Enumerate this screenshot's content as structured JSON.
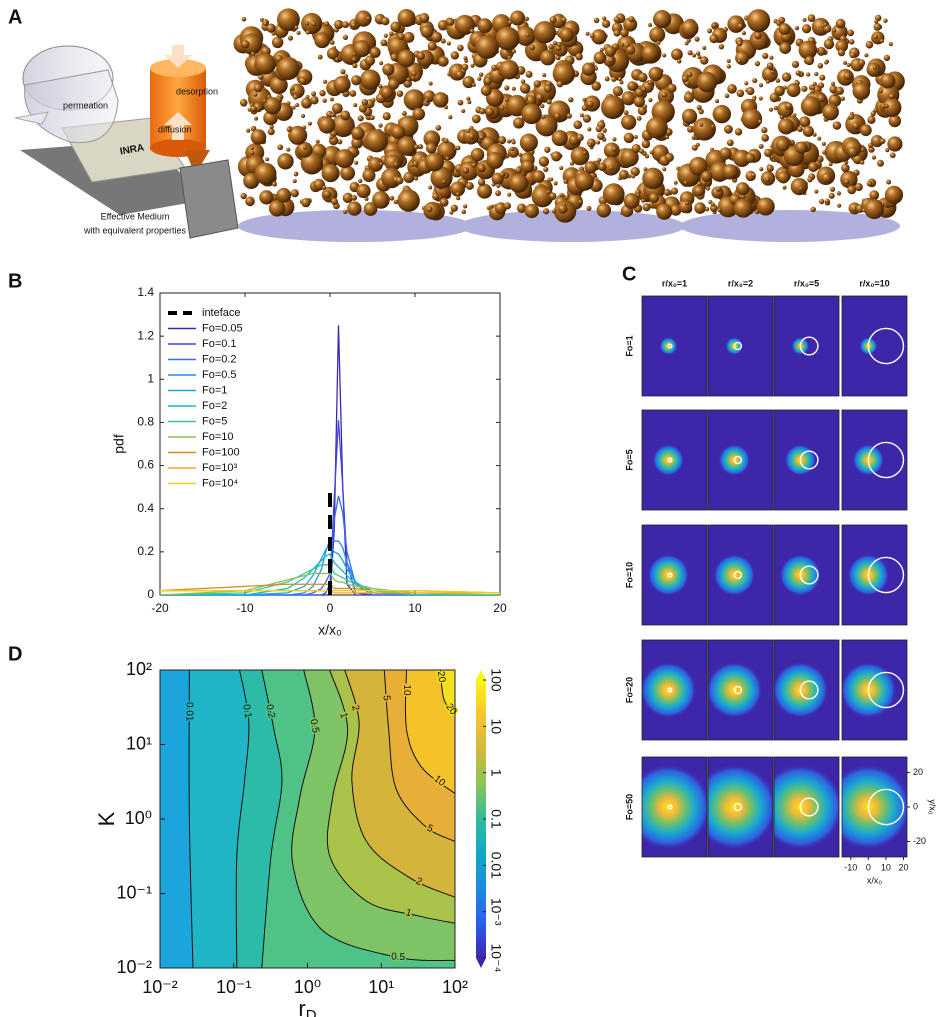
{
  "panel_labels": [
    "A",
    "B",
    "C",
    "D"
  ],
  "schematic": {
    "permeation": "permeation",
    "desorption": "desorption",
    "diffusion": "diffusion",
    "card_text": "INRA",
    "caption_1": "Effective Medium",
    "caption_2": "with equivalent properties"
  },
  "chart_data": [
    {
      "type": "line",
      "xlabel": "x/x₀",
      "ylabel": "pdf",
      "xlim": [
        -20,
        20
      ],
      "ylim": [
        0,
        1.4
      ],
      "xticks": [
        -20,
        -10,
        0,
        10,
        20
      ],
      "yticks": [
        0,
        0.2,
        0.4,
        0.6,
        0.8,
        1,
        1.2,
        1.4
      ],
      "legend": "upper left",
      "interface": {
        "name": "inteface",
        "color": "#000000",
        "x": [
          0,
          0
        ],
        "values": [
          0,
          0.5
        ]
      },
      "x": [
        -20,
        -10,
        -5,
        -3,
        -2,
        -1,
        -0.5,
        0,
        0.5,
        1,
        1.5,
        2,
        3,
        5,
        10,
        20
      ],
      "series": [
        {
          "name": "Fo=0.05",
          "color": "#3b28b0",
          "values": [
            0,
            0,
            0,
            0,
            0,
            0,
            0,
            0,
            0.3,
            1.25,
            0.5,
            0.05,
            0,
            0,
            0,
            0
          ]
        },
        {
          "name": "Fo=0.1",
          "color": "#4347d6",
          "values": [
            0,
            0,
            0,
            0,
            0,
            0,
            0.01,
            0.05,
            0.45,
            0.81,
            0.5,
            0.15,
            0.01,
            0,
            0,
            0
          ]
        },
        {
          "name": "Fo=0.2",
          "color": "#3a68ef",
          "values": [
            0,
            0,
            0,
            0,
            0.01,
            0.03,
            0.06,
            0.1,
            0.35,
            0.46,
            0.38,
            0.2,
            0.05,
            0,
            0,
            0
          ]
        },
        {
          "name": "Fo=0.5",
          "color": "#2b8aec",
          "values": [
            0,
            0,
            0,
            0.01,
            0.04,
            0.12,
            0.2,
            0.26,
            0.25,
            0.25,
            0.22,
            0.15,
            0.06,
            0.01,
            0,
            0
          ]
        },
        {
          "name": "Fo=1",
          "color": "#18a6dd",
          "values": [
            0,
            0,
            0.01,
            0.04,
            0.09,
            0.17,
            0.21,
            0.23,
            0.2,
            0.19,
            0.16,
            0.12,
            0.06,
            0.01,
            0,
            0
          ]
        },
        {
          "name": "Fo=2",
          "color": "#13bcc0",
          "values": [
            0,
            0,
            0.03,
            0.08,
            0.12,
            0.16,
            0.18,
            0.19,
            0.15,
            0.13,
            0.11,
            0.09,
            0.05,
            0.02,
            0,
            0
          ]
        },
        {
          "name": "Fo=5",
          "color": "#3cc596",
          "values": [
            0,
            0.01,
            0.06,
            0.1,
            0.12,
            0.14,
            0.14,
            0.14,
            0.1,
            0.09,
            0.08,
            0.07,
            0.05,
            0.03,
            0,
            0
          ]
        },
        {
          "name": "Fo=10",
          "color": "#88c25a",
          "values": [
            0,
            0.02,
            0.07,
            0.09,
            0.1,
            0.1,
            0.1,
            0.1,
            0.07,
            0.06,
            0.06,
            0.05,
            0.04,
            0.03,
            0.01,
            0
          ]
        },
        {
          "name": "Fo=100",
          "color": "#d8891f",
          "values": [
            0.02,
            0.04,
            0.05,
            0.05,
            0.05,
            0.05,
            0.05,
            0.05,
            0.03,
            0.03,
            0.03,
            0.03,
            0.03,
            0.02,
            0.02,
            0.01
          ]
        },
        {
          "name": "Fo=10³",
          "color": "#f2a82a",
          "values": [
            0.02,
            0.02,
            0.02,
            0.02,
            0.02,
            0.02,
            0.02,
            0.02,
            0.01,
            0.01,
            0.01,
            0.01,
            0.01,
            0.01,
            0.01,
            0.01
          ]
        },
        {
          "name": "Fo=10⁴",
          "color": "#e8d21e",
          "values": [
            0.02,
            0.02,
            0.02,
            0.02,
            0.02,
            0.02,
            0.02,
            0.02,
            0.02,
            0.02,
            0.02,
            0.02,
            0.02,
            0.02,
            0.02,
            0.01
          ]
        }
      ]
    },
    {
      "type": "heatmap_grid",
      "col_labels": [
        "r/x₀=1",
        "r/x₀=2",
        "r/x₀=5",
        "r/x₀=10"
      ],
      "r_values": [
        1,
        2,
        5,
        10
      ],
      "row_labels": [
        "Fo=1",
        "Fo=5",
        "Fo=10",
        "Fo=20",
        "Fo=50"
      ],
      "fo_values": [
        1,
        5,
        10,
        20,
        50
      ],
      "xlim": [
        -15,
        22
      ],
      "ylim": [
        -29,
        29
      ],
      "xticks": [
        -10,
        0,
        10,
        20
      ],
      "yticks": [
        -20,
        0,
        20
      ],
      "xlabel": "x/x₀",
      "ylabel": "y/x₀",
      "background": "#3e26a8",
      "circle_color": "#ffffff"
    },
    {
      "type": "contour",
      "xlabel": "r",
      "xlabel_sub": "D",
      "ylabel": "K",
      "xscale": "log",
      "yscale": "log",
      "xlim": [
        0.01,
        100
      ],
      "ylim": [
        0.01,
        100
      ],
      "xticks": [
        {
          "value": 0.01,
          "label": "10⁻²"
        },
        {
          "value": 0.1,
          "label": "10⁻¹"
        },
        {
          "value": 1,
          "label": "10⁰"
        },
        {
          "value": 10,
          "label": "10¹"
        },
        {
          "value": 100,
          "label": "10²"
        }
      ],
      "yticks": [
        {
          "value": 0.01,
          "label": "10⁻²"
        },
        {
          "value": 0.1,
          "label": "10⁻¹"
        },
        {
          "value": 1,
          "label": "10⁰"
        },
        {
          "value": 10,
          "label": "10¹"
        },
        {
          "value": 100,
          "label": "10²"
        }
      ],
      "base_color": "#1ba5dc",
      "contours": [
        {
          "level": 0.01,
          "color": "#1fb4c6",
          "x": [
            0.025,
            0.025,
            0.028
          ],
          "y": [
            100,
            1,
            0.01
          ]
        },
        {
          "level": 0.1,
          "color": "#2bbba8",
          "x": [
            0.12,
            0.16,
            0.14,
            0.11,
            0.11
          ],
          "y": [
            100,
            20,
            3.2,
            0.32,
            0.01
          ]
        },
        {
          "level": 0.2,
          "color": "#4ec287",
          "x": [
            0.24,
            0.35,
            0.45,
            0.32,
            0.24
          ],
          "y": [
            100,
            16,
            3.2,
            0.32,
            0.01
          ]
        },
        {
          "level": 0.5,
          "color": "#7ec466",
          "x": [
            0.89,
            1.26,
            0.79,
            0.63,
            1.6,
            16,
            100
          ],
          "y": [
            100,
            16,
            2,
            0.25,
            0.032,
            0.014,
            0.0126
          ]
        },
        {
          "level": 1,
          "color": "#a8c24a",
          "x": [
            2,
            3.5,
            2.2,
            2,
            6.3,
            32,
            100
          ],
          "y": [
            100,
            16,
            2,
            0.32,
            0.079,
            0.05,
            0.04
          ]
        },
        {
          "level": 2,
          "color": "#d4b43a",
          "x": [
            3.2,
            5,
            4,
            6.3,
            25,
            100
          ],
          "y": [
            100,
            20,
            3.2,
            0.5,
            0.16,
            0.089
          ]
        },
        {
          "level": 5,
          "color": "#e7af38",
          "x": [
            11,
            12.6,
            16,
            40,
            100
          ],
          "y": [
            100,
            16,
            2.5,
            0.79,
            0.5
          ]
        },
        {
          "level": 10,
          "color": "#f5c22a",
          "x": [
            22,
            22,
            35,
            100
          ],
          "y": [
            100,
            16,
            5,
            2.2
          ]
        },
        {
          "level": 20,
          "color": "#f4e01e",
          "x": [
            63,
            71,
            100
          ],
          "y": [
            100,
            40,
            25
          ]
        }
      ],
      "clim": [
        0.0001,
        100
      ],
      "cticks": [
        {
          "value": 0.0001,
          "label": "10⁻⁴"
        },
        {
          "value": 0.001,
          "label": "10⁻³"
        },
        0.01,
        0.1,
        1,
        10,
        100
      ],
      "colormap": [
        "#3e26a8",
        "#2c5df0",
        "#1c8ae0",
        "#10a9c8",
        "#33bb9a",
        "#8ac45c",
        "#d2b83c",
        "#f8c52c",
        "#f8f514"
      ]
    }
  ]
}
